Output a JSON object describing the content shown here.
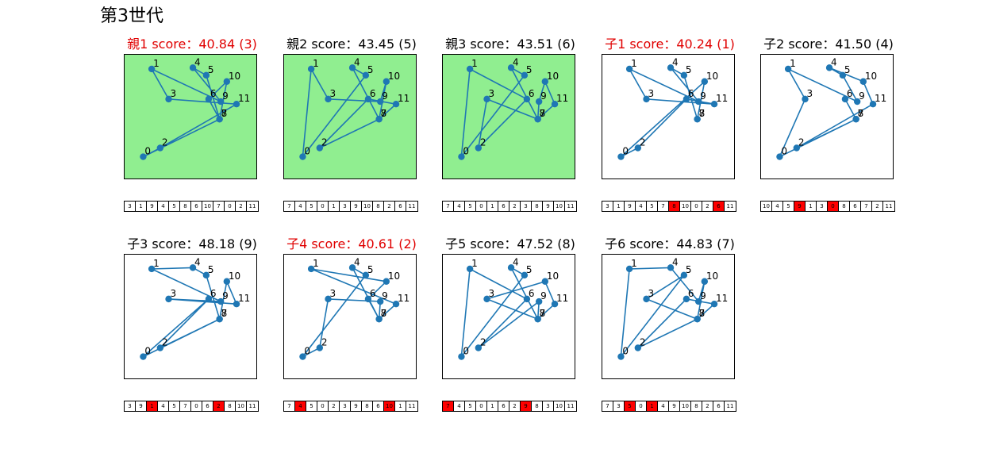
{
  "title": "第3世代",
  "colors": {
    "selected_bg": "#90ee90",
    "selected_title": "#e00000",
    "mutation": "#ff0000",
    "path": "#1f77b4",
    "point": "#1f77b4"
  },
  "chart_data": {
    "type": "scatter",
    "xlim": [
      0,
      11
    ],
    "ylim": [
      0,
      10
    ],
    "points": [
      {
        "label": "0",
        "x": 1.6,
        "y": 1.8
      },
      {
        "label": "1",
        "x": 2.3,
        "y": 8.8
      },
      {
        "label": "2",
        "x": 3.0,
        "y": 2.5
      },
      {
        "label": "3",
        "x": 3.7,
        "y": 6.4
      },
      {
        "label": "4",
        "x": 5.7,
        "y": 8.9
      },
      {
        "label": "5",
        "x": 6.8,
        "y": 8.3
      },
      {
        "label": "6",
        "x": 7.0,
        "y": 6.4
      },
      {
        "label": "7",
        "x": 7.9,
        "y": 4.8
      },
      {
        "label": "8",
        "x": 7.9,
        "y": 4.8
      },
      {
        "label": "9",
        "x": 8.0,
        "y": 6.2
      },
      {
        "label": "10",
        "x": 8.5,
        "y": 7.8
      },
      {
        "label": "11",
        "x": 9.3,
        "y": 6.0
      }
    ],
    "panels": [
      {
        "title": "親1 score：40.84 (3)",
        "selected": true,
        "route": [
          3,
          1,
          9,
          4,
          5,
          8,
          6,
          10,
          7,
          0,
          2,
          11
        ],
        "mutated": []
      },
      {
        "title": "親2 score：43.45 (5)",
        "selected": true,
        "route": [
          7,
          4,
          5,
          0,
          1,
          3,
          9,
          10,
          8,
          2,
          6,
          11
        ],
        "mutated": []
      },
      {
        "title": "親3 score：43.51 (6)",
        "selected": true,
        "route": [
          7,
          4,
          5,
          0,
          1,
          6,
          2,
          3,
          8,
          9,
          10,
          11
        ],
        "mutated": []
      },
      {
        "title": "子1 score：40.24 (1)",
        "selected": false,
        "highlight": true,
        "route": [
          3,
          1,
          9,
          4,
          5,
          7,
          8,
          10,
          0,
          2,
          6,
          11
        ],
        "mutated": [
          6,
          10
        ]
      },
      {
        "title": "子2 score：41.50 (4)",
        "selected": false,
        "route": [
          10,
          4,
          5,
          9,
          1,
          3,
          0,
          8,
          6,
          7,
          2,
          11
        ],
        "mutated": [
          3,
          6
        ]
      },
      {
        "title": "子3 score：48.18 (9)",
        "selected": false,
        "route": [
          3,
          9,
          1,
          4,
          5,
          7,
          0,
          6,
          2,
          8,
          10,
          11
        ],
        "mutated": [
          2,
          8
        ]
      },
      {
        "title": "子4 score：40.61 (2)",
        "selected": false,
        "highlight": true,
        "route": [
          7,
          4,
          5,
          0,
          2,
          3,
          9,
          8,
          6,
          10,
          1,
          11
        ],
        "mutated": [
          1,
          9
        ]
      },
      {
        "title": "子5 score：47.52 (8)",
        "selected": false,
        "route": [
          7,
          4,
          5,
          0,
          1,
          6,
          2,
          9,
          8,
          3,
          10,
          11
        ],
        "mutated": [
          0,
          7
        ]
      },
      {
        "title": "子6 score：44.83 (7)",
        "selected": false,
        "route": [
          7,
          3,
          5,
          0,
          1,
          4,
          9,
          10,
          8,
          2,
          6,
          11
        ],
        "mutated": [
          2,
          4
        ]
      }
    ]
  }
}
